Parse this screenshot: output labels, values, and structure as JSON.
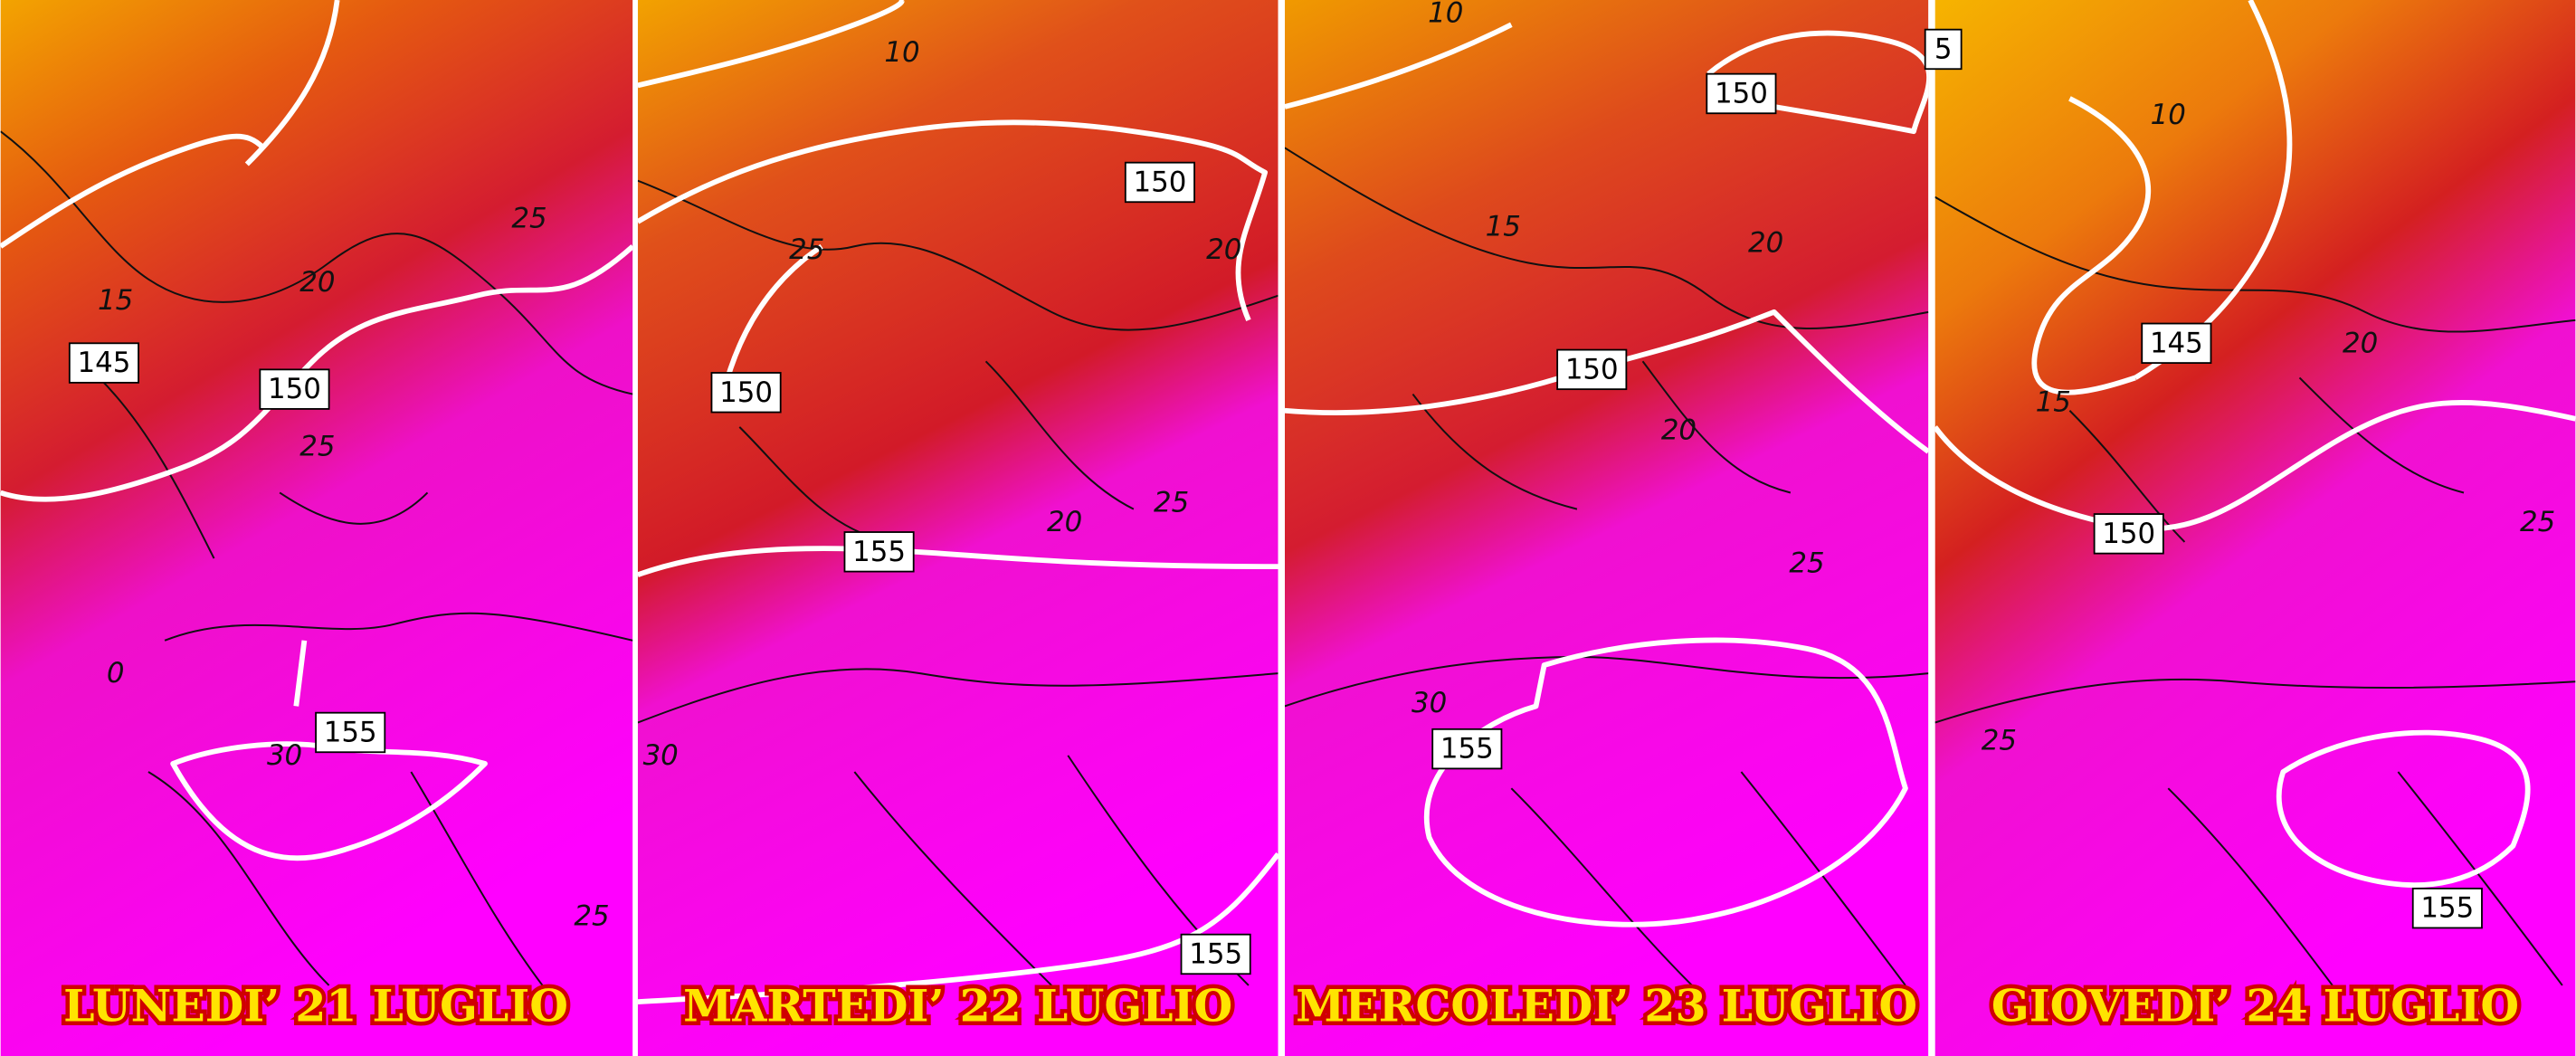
{
  "panels": [
    {
      "title": "LUNEDI’ 21 LUGLIO",
      "labels": [
        "145",
        "150",
        "155",
        "15",
        "20",
        "25",
        "25",
        "30",
        "0",
        "25"
      ]
    },
    {
      "title": "MARTEDI’ 22 LUGLIO",
      "labels": [
        "150",
        "150",
        "155",
        "155",
        "10",
        "25",
        "20",
        "20",
        "25",
        "30"
      ]
    },
    {
      "title": "MERCOLEDI’ 23 LUGLIO",
      "labels": [
        "150",
        "150",
        "155",
        "10",
        "15",
        "20",
        "20",
        "25",
        "30"
      ]
    },
    {
      "title": "GIOVEDI’ 24 LUGLIO",
      "labels": [
        "5",
        "145",
        "150",
        "155",
        "10",
        "20",
        "15",
        "25",
        "25"
      ]
    }
  ]
}
